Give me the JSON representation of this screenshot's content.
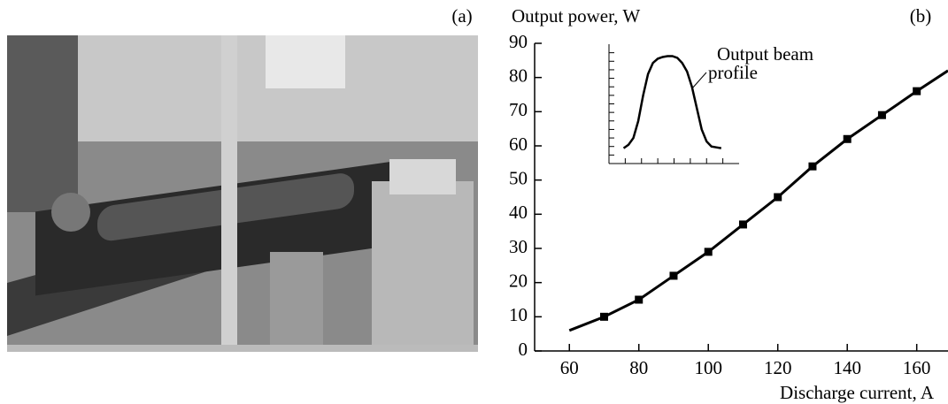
{
  "panel_a": {
    "label": "(a)"
  },
  "chart_data": {
    "type": "line",
    "panel_label": "(b)",
    "y_label": "Output power, W",
    "x_label": "Discharge current, A",
    "xlim": [
      50,
      169
    ],
    "ylim": [
      0,
      90
    ],
    "xticks": [
      60,
      80,
      100,
      120,
      140,
      160
    ],
    "yticks": [
      0,
      10,
      20,
      30,
      40,
      50,
      60,
      70,
      80,
      90
    ],
    "color": "#000000",
    "series": [
      {
        "x": [
          60,
          70,
          80,
          90,
          100,
          110,
          120,
          130,
          140,
          150,
          160,
          169
        ],
        "values": [
          6,
          10,
          15,
          22,
          29,
          37,
          45,
          54,
          62,
          69,
          76,
          82
        ]
      },
      {
        "x": [
          70,
          80,
          90,
          100,
          110,
          120,
          130,
          140,
          150,
          160
        ],
        "values": [
          10,
          15,
          22,
          29,
          37,
          45,
          54,
          62,
          69,
          76
        ],
        "markers": true
      }
    ],
    "inset": {
      "annotation": [
        "Output beam",
        "profile"
      ],
      "xlim": [
        0,
        8
      ],
      "ylim": [
        0,
        14
      ],
      "xticks": [
        1,
        2,
        3,
        4,
        5,
        6,
        7
      ],
      "yticks": [
        1,
        2,
        3,
        4,
        5,
        6,
        7,
        8,
        9,
        10,
        11,
        12,
        13
      ],
      "x": [
        0.9,
        1.2,
        1.5,
        1.8,
        2.1,
        2.4,
        2.7,
        3.0,
        3.3,
        3.6,
        3.9,
        4.2,
        4.5,
        4.8,
        5.1,
        5.4,
        5.7,
        6.0,
        6.3,
        6.6,
        6.9
      ],
      "values": [
        1.8,
        2.2,
        3,
        5,
        8,
        10.5,
        11.8,
        12.3,
        12.5,
        12.6,
        12.6,
        12.4,
        11.8,
        10.8,
        9,
        6.5,
        4,
        2.6,
        2,
        1.9,
        1.8
      ]
    }
  }
}
